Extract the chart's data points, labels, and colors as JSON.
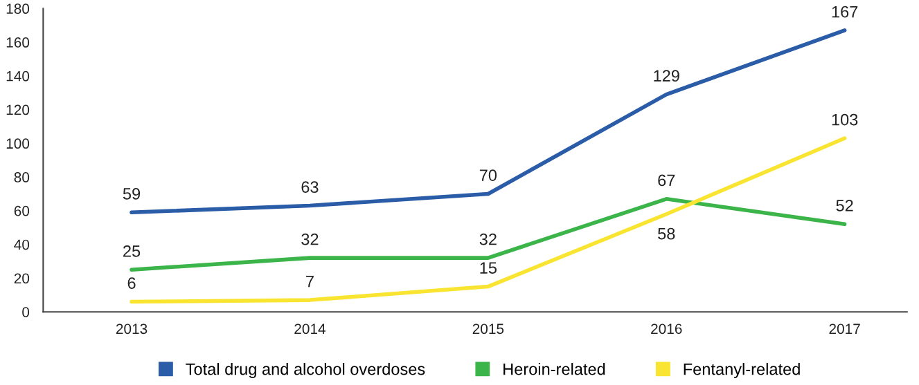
{
  "chart_data": {
    "type": "line",
    "categories": [
      "2013",
      "2014",
      "2015",
      "2016",
      "2017"
    ],
    "series": [
      {
        "name": "Total drug and alcohol overdoses",
        "color": "#2a5ca8",
        "values": [
          59,
          63,
          70,
          129,
          167
        ]
      },
      {
        "name": "Heroin-related",
        "color": "#3bb54a",
        "values": [
          25,
          32,
          32,
          67,
          52
        ]
      },
      {
        "name": "Fentanyl-related",
        "color": "#f9e531",
        "values": [
          6,
          7,
          15,
          58,
          103
        ]
      }
    ],
    "ylim": [
      0,
      180
    ],
    "yticks": [
      0,
      20,
      40,
      60,
      80,
      100,
      120,
      140,
      160,
      180
    ],
    "data_labels": true,
    "legend": "bottom",
    "grid": false,
    "marker": "none",
    "line_style": "solid"
  }
}
